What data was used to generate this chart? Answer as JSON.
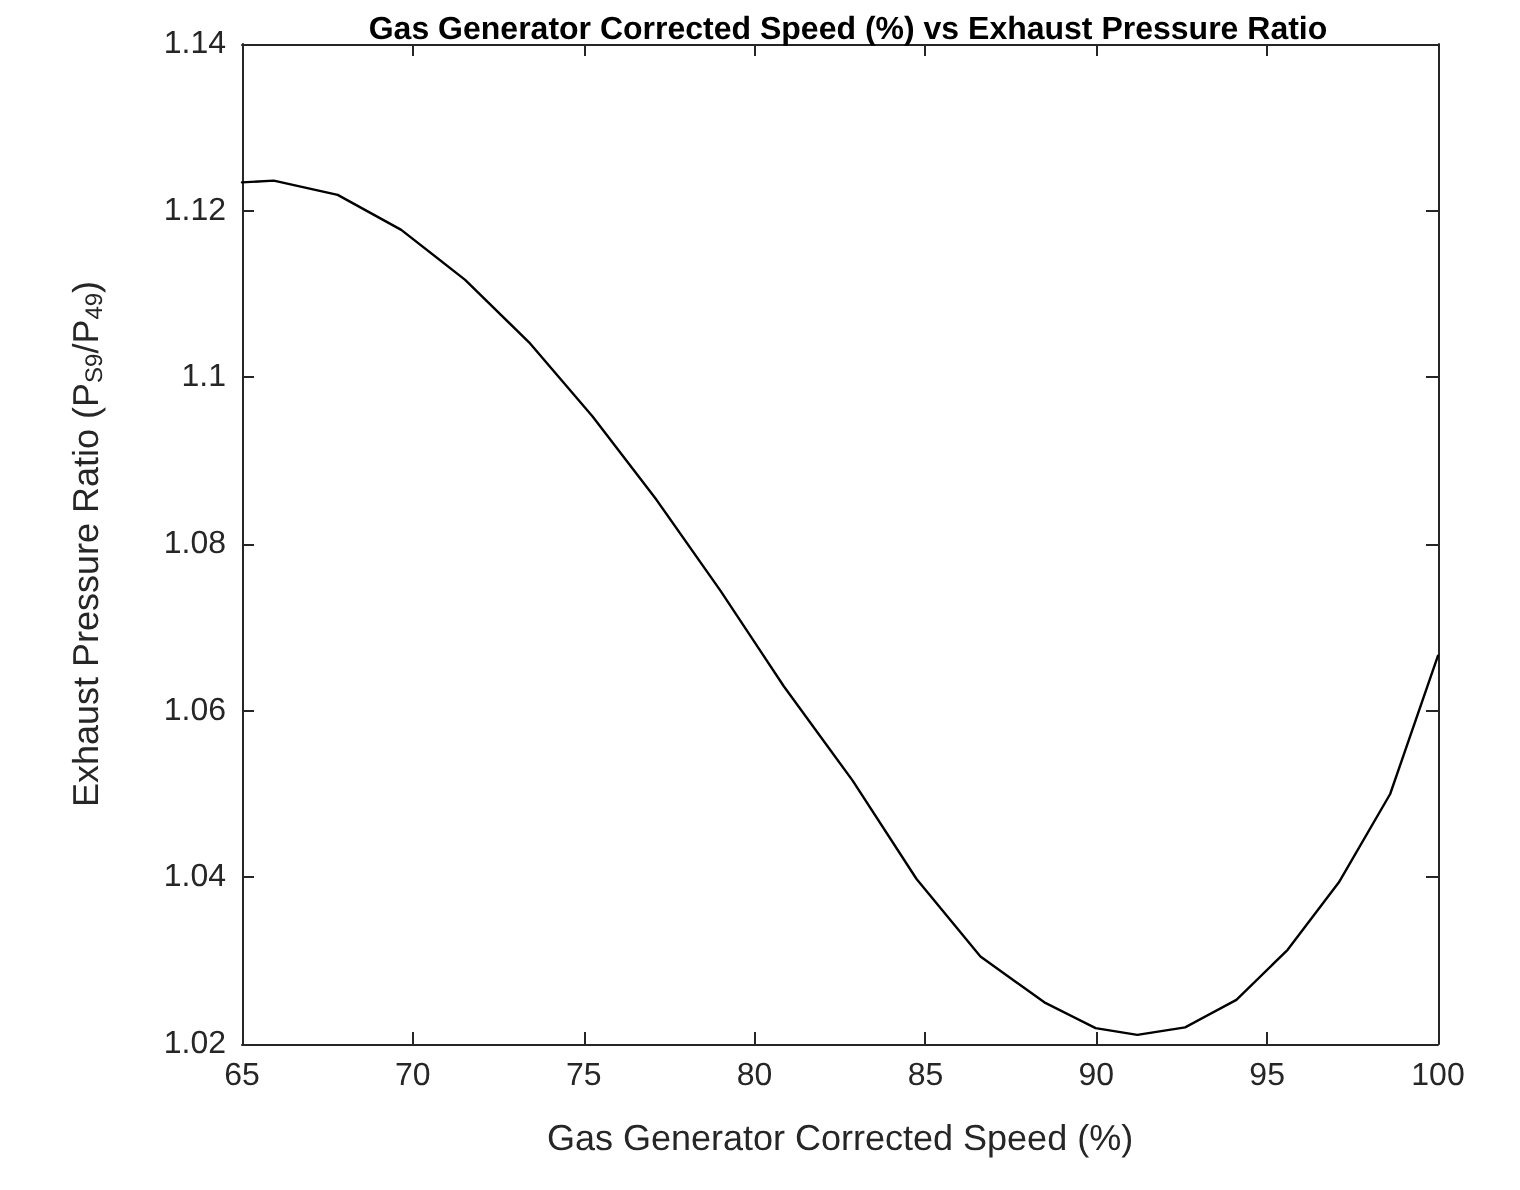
{
  "chart_data": {
    "type": "line",
    "title": "Gas Generator Corrected Speed (%) vs Exhaust Pressure Ratio",
    "xlabel": "Gas Generator Corrected Speed (%)",
    "ylabel": "Exhaust Pressure Ratio (P$_{S9}$/P$_{49}$)",
    "x": [
      65,
      65.93,
      67.8,
      69.66,
      71.53,
      73.4,
      75.26,
      77.13,
      79.0,
      80.86,
      82.87,
      84.74,
      86.61,
      88.48,
      89.98,
      91.2,
      92.6,
      94.1,
      95.6,
      97.1,
      98.6,
      100
    ],
    "series": [
      {
        "color": "#000000",
        "values": [
          1.1234,
          1.1236,
          1.1219,
          1.1177,
          1.1117,
          1.1042,
          1.0953,
          1.0853,
          1.0744,
          1.0629,
          1.0516,
          1.0398,
          1.0305,
          1.025,
          1.0219,
          1.0211,
          1.022,
          1.0253,
          1.0313,
          1.0394,
          1.05,
          1.0666
        ]
      }
    ],
    "xlim": [
      65,
      100
    ],
    "ylim": [
      1.02,
      1.14
    ],
    "xticks": [
      65,
      70,
      75,
      80,
      85,
      90,
      95,
      100
    ],
    "yticks": [
      1.02,
      1.04,
      1.06,
      1.08,
      1.1,
      1.12,
      1.14
    ],
    "grid": false,
    "marker": "none",
    "line_style": "solid"
  }
}
